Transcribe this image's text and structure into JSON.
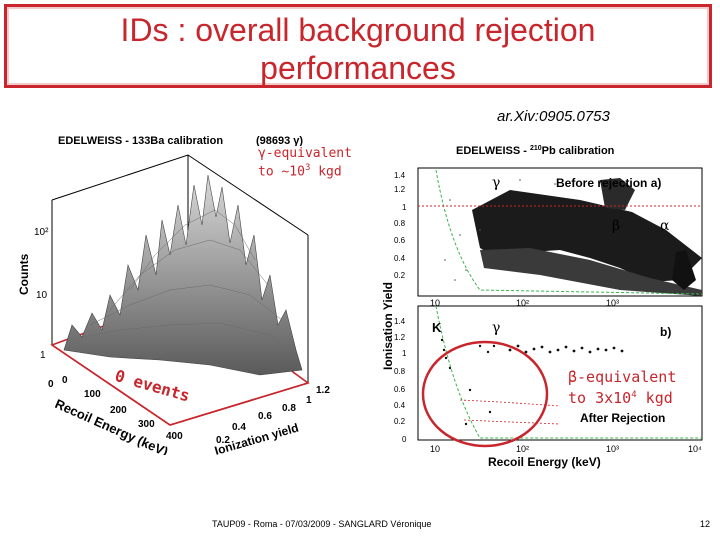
{
  "slide": {
    "title_line1": "IDs : overall background rejection",
    "title_line2": "performances",
    "reference": "ar.Xiv:0905.0753",
    "footer": "TAUP09 - Roma - 07/03/2009 - SANGLARD Véronique",
    "page_number": "12"
  },
  "left_plot": {
    "title": "EDELWEISS - 133Ba calibration",
    "event_count": "(98693 γ)",
    "note_line1": "γ-equivalent",
    "note_line2_prefix": "to ~10",
    "note_line2_exp": "3",
    "note_line2_suffix": " kgd",
    "zero_events": "0 events",
    "z_axis_label": "Counts",
    "z_ticks": [
      "10²",
      "10",
      "1"
    ],
    "x_axis_label": "Recoil Energy (keV)",
    "x_ticks": [
      "0",
      "100",
      "200",
      "300",
      "400"
    ],
    "y_axis_label": "Ionization yield",
    "y_ticks": [
      "0.2",
      "0.4",
      "0.6",
      "0.8",
      "1",
      "1.2"
    ],
    "zero_tick": "0"
  },
  "right_plot": {
    "title_prefix": "EDELWEISS - ",
    "title_sup": "210",
    "title_suffix": "Pb calibration",
    "y_axis_label": "Ionisation Yield",
    "x_axis_label": "Recoil Energy (keV)",
    "top_panel_label": "Before rejection a)",
    "bottom_panel_label": "b)",
    "after_label": "After Rejection",
    "gamma_label": "γ",
    "beta_label": "β",
    "alpha_label": "α",
    "k_label": "K",
    "gamma_label_b": "γ",
    "y_ticks_top": [
      "1.4",
      "1.2",
      "1",
      "0.8",
      "0.6",
      "0.4",
      "0.2"
    ],
    "y_ticks_bottom": [
      "1.4",
      "1.2",
      "1",
      "0.8",
      "0.6",
      "0.4",
      "0.2",
      "0"
    ],
    "x_ticks_top": [
      "10",
      "10²",
      "10³"
    ],
    "x_ticks_bottom": [
      "10",
      "10²",
      "10³",
      "10⁴"
    ],
    "note_line1": "β-equivalent",
    "note_line2_prefix": "to 3x10",
    "note_line2_exp": "4",
    "note_line2_suffix": " kgd"
  },
  "colors": {
    "accent": "#c8262c",
    "guide_green": "#39b54a",
    "data_black": "#111111"
  }
}
